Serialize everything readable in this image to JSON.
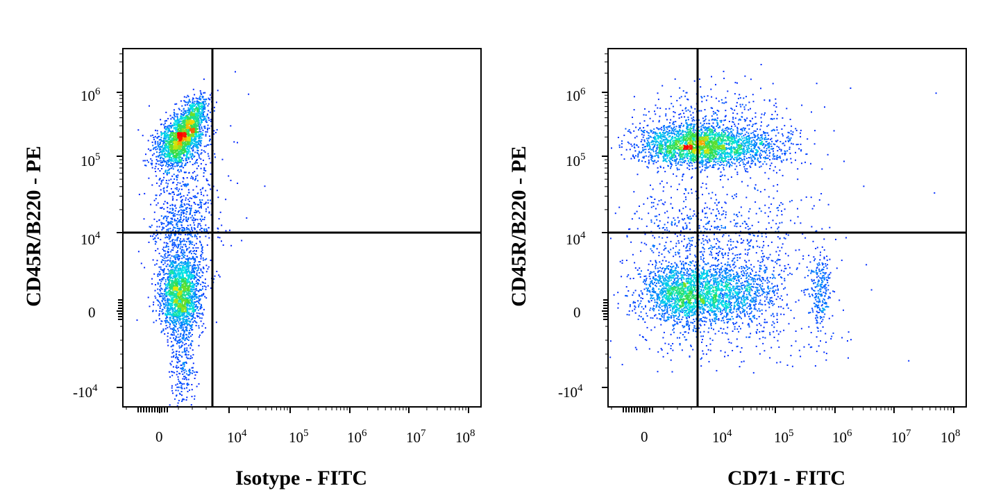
{
  "chart_data": [
    {
      "type": "scatter",
      "subtype": "flow-cytometry-density-dot-plot",
      "xlabel": "Isotype - FITC",
      "ylabel": "CD45R/B220 - PE",
      "x_scale": "biexponential",
      "y_scale": "biexponential",
      "x_ticks": [
        "0",
        "10^4",
        "10^5",
        "10^6",
        "10^7",
        "10^8"
      ],
      "y_ticks": [
        "-10^4",
        "0",
        "10^4",
        "10^5",
        "10^6"
      ],
      "quadrant_gate": {
        "x": 5500,
        "y": 11000
      },
      "populations": [
        {
          "description": "CD45R/B220+ FITC- cluster",
          "x_center": 1200,
          "y_center": 160000,
          "relative_density": "high"
        },
        {
          "description": "CD45R/B220- FITC- cluster",
          "x_center": 1200,
          "y_center": 1500,
          "relative_density": "high"
        }
      ]
    },
    {
      "type": "scatter",
      "subtype": "flow-cytometry-density-dot-plot",
      "xlabel": "CD71 - FITC",
      "ylabel": "CD45R/B220 - PE",
      "x_scale": "biexponential",
      "y_scale": "biexponential",
      "x_ticks": [
        "0",
        "10^4",
        "10^5",
        "10^6",
        "10^7",
        "10^8"
      ],
      "y_ticks": [
        "-10^4",
        "0",
        "10^4",
        "10^5",
        "10^6"
      ],
      "quadrant_gate": {
        "x": 5500,
        "y": 11000
      },
      "populations": [
        {
          "description": "CD45R/B220+ CD71 low",
          "x_center": 2500,
          "y_center": 150000,
          "relative_density": "high"
        },
        {
          "description": "CD45R/B220+ CD71 mid",
          "x_center": 15000,
          "y_center": 140000,
          "relative_density": "medium"
        },
        {
          "description": "CD45R/B220- CD71 low",
          "x_center": 2500,
          "y_center": 1500,
          "relative_density": "high"
        },
        {
          "description": "CD45R/B220- CD71 mid",
          "x_center": 18000,
          "y_center": 1500,
          "relative_density": "medium"
        },
        {
          "description": "CD45R/B220- CD71 high",
          "x_center": 600000,
          "y_center": 1500,
          "relative_density": "low"
        }
      ]
    }
  ],
  "colors": {
    "axis": "#000000",
    "density_low": "#0000ff",
    "density_mid": "#00ffff",
    "density_high": "#ff0000"
  }
}
